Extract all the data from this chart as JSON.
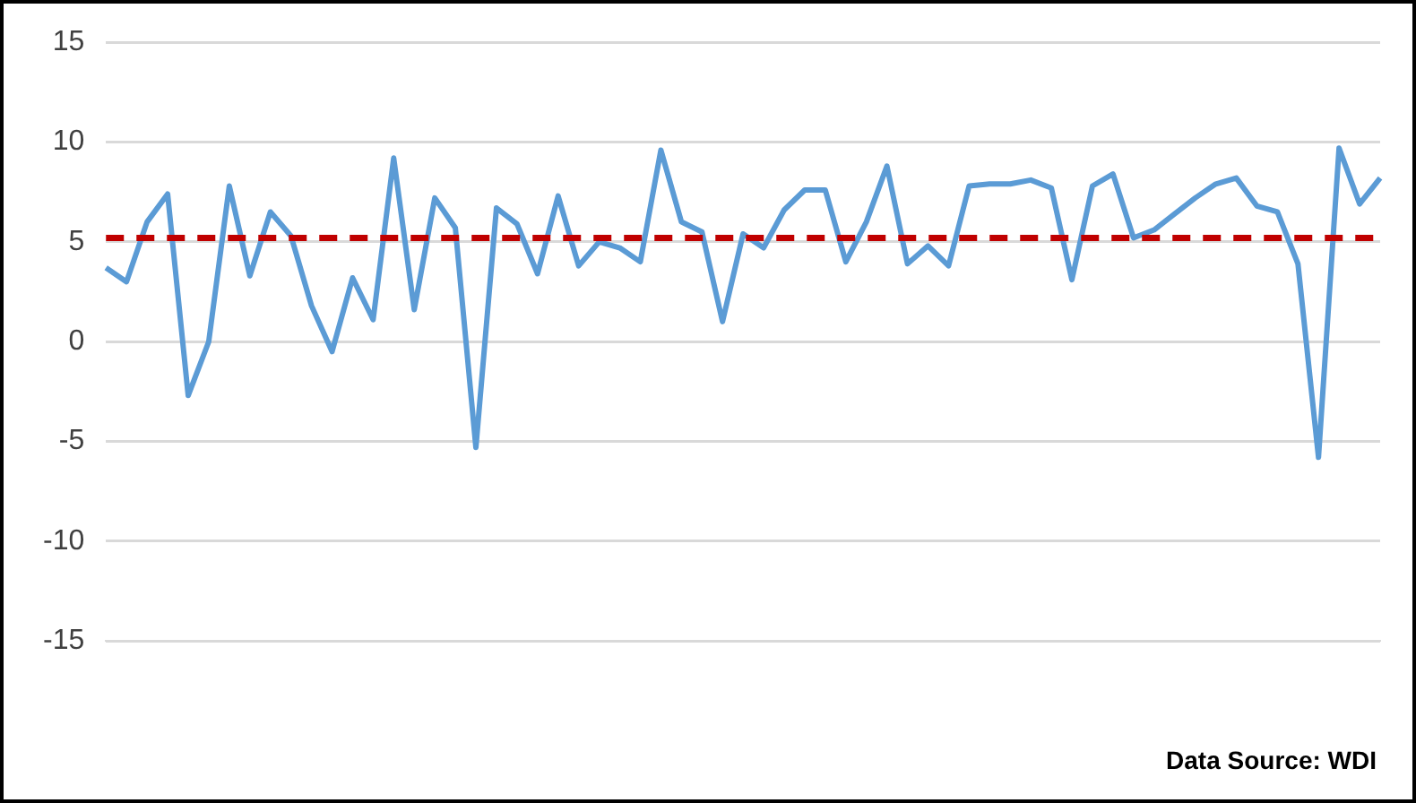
{
  "chart_data": {
    "type": "line",
    "categories": [
      null,
      null,
      null,
      null,
      null,
      null,
      null,
      null,
      null,
      null,
      null,
      null,
      null,
      null,
      null,
      null,
      null,
      null,
      null,
      null,
      null,
      null,
      null,
      null,
      null,
      null,
      null,
      null,
      null,
      null,
      null,
      null,
      null,
      null,
      null,
      null,
      null,
      null,
      null,
      null,
      null,
      null,
      null,
      null,
      null,
      null,
      null,
      null,
      null,
      null,
      null,
      null,
      null,
      null,
      null,
      null,
      null,
      null,
      null,
      null,
      null,
      null,
      null
    ],
    "series": [
      {
        "color": "#5b9bd5",
        "values": [
          3.7,
          3.0,
          6.0,
          7.4,
          -2.7,
          0.0,
          7.8,
          3.3,
          6.5,
          5.3,
          1.8,
          -0.5,
          3.2,
          1.1,
          9.2,
          1.6,
          7.2,
          5.7,
          -5.3,
          6.7,
          5.9,
          3.4,
          7.3,
          3.8,
          5.0,
          4.7,
          4.0,
          9.6,
          6.0,
          5.5,
          1.0,
          5.4,
          4.7,
          6.6,
          7.6,
          7.6,
          4.0,
          6.0,
          8.8,
          3.9,
          4.8,
          3.8,
          7.8,
          7.9,
          7.9,
          8.1,
          7.7,
          3.1,
          7.8,
          8.4,
          5.2,
          5.6,
          6.4,
          7.2,
          7.9,
          8.2,
          6.8,
          6.5,
          3.9,
          -5.8,
          9.7,
          6.9,
          8.2
        ]
      }
    ],
    "ref_lines": [
      {
        "axis": "y",
        "value": 5.2,
        "color": "#c00000",
        "line_style": "dashed"
      }
    ],
    "ylim": [
      -15,
      15
    ],
    "yticks": [
      -15,
      -10,
      -5,
      0,
      5,
      10,
      15
    ],
    "grid": "y",
    "legend": false,
    "marker": "none",
    "line_style": "solid",
    "annotations": [
      "Data Source: WDI"
    ]
  }
}
